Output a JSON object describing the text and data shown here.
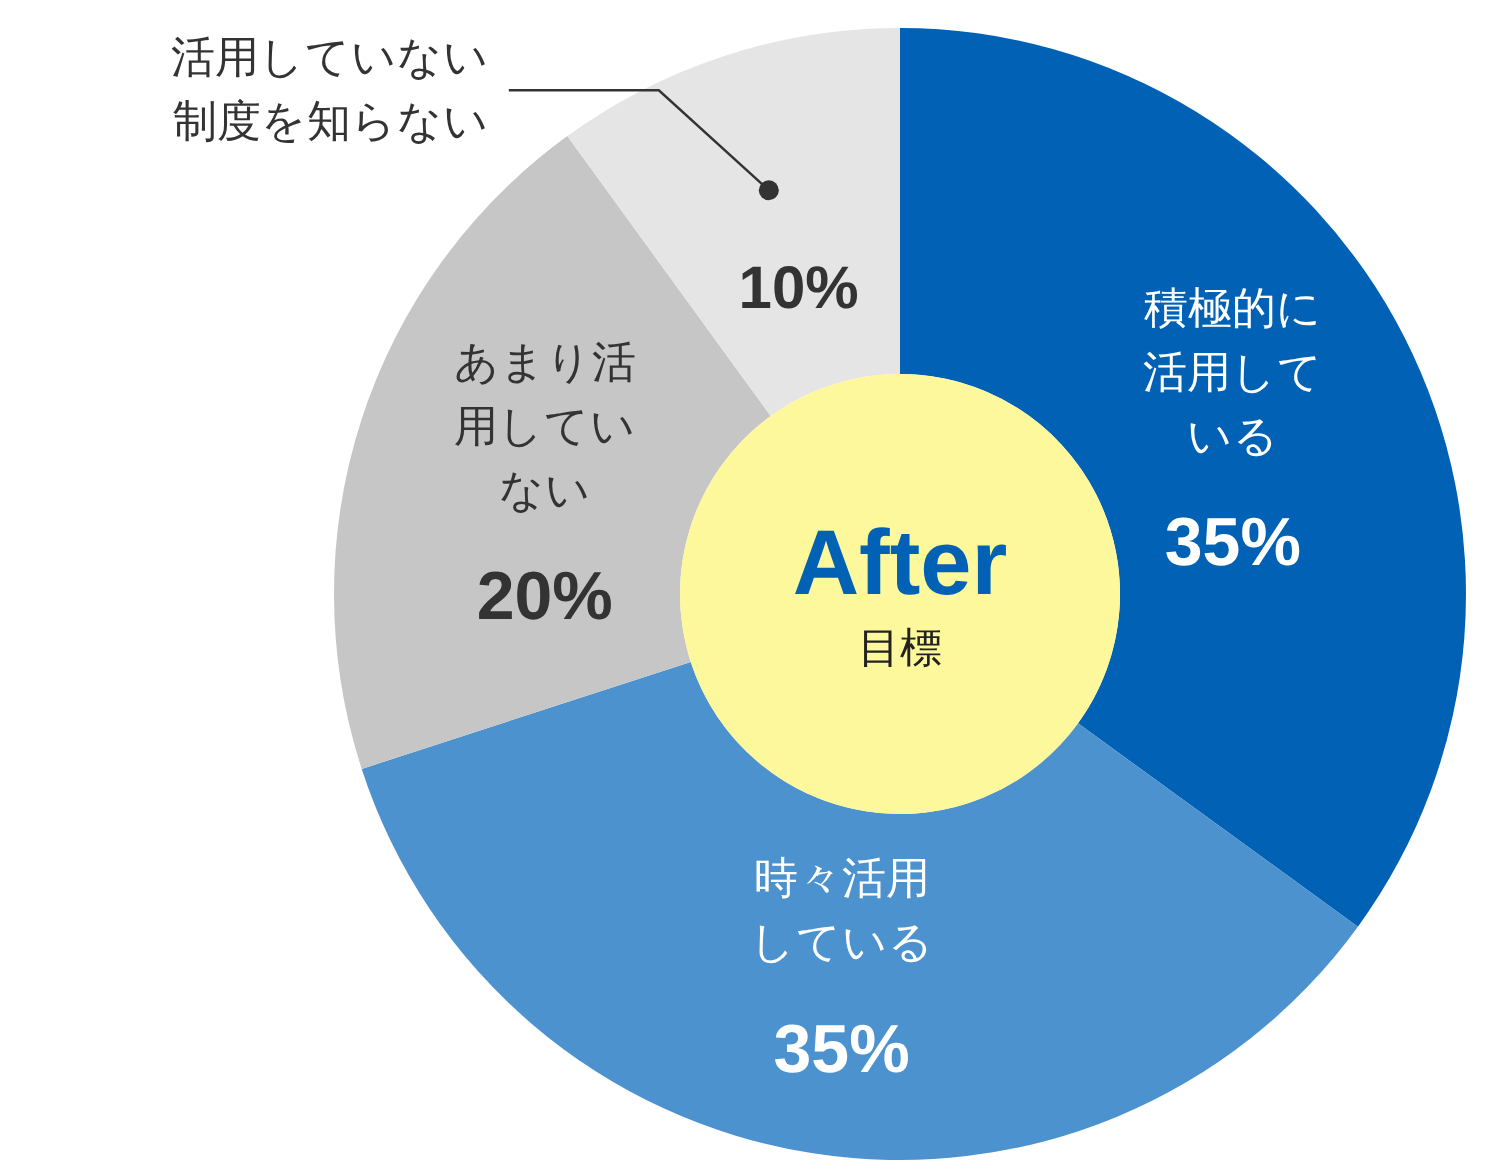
{
  "chart_data": {
    "type": "donut",
    "title": "After",
    "subtitle": "目標",
    "categories": [
      "積極的に活用している",
      "時々活用している",
      "あまり活用していない",
      "活用していない制度を知らない"
    ],
    "values": [
      35,
      35,
      20,
      10
    ],
    "value_labels": [
      "35%",
      "35%",
      "20%",
      "10%"
    ],
    "colors": [
      "#0061b5",
      "#4b92cf",
      "#c6c6c6",
      "#e5e5e5"
    ],
    "legend": false
  }
}
